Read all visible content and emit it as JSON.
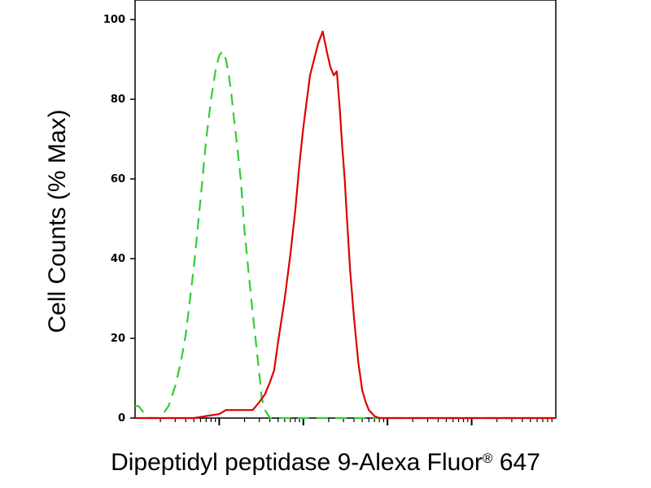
{
  "chart_data": {
    "type": "line",
    "xlabel": "Dipeptidyl peptidase 9-Alexa Fluor",
    "xlabel_superscript": "®",
    "xlabel_suffix": "647",
    "ylabel": "Cell Counts (% Max)",
    "x_scale": "log",
    "xlim": [
      1,
      100000
    ],
    "ylim": [
      0,
      100
    ],
    "y_ticks": [
      "0",
      "20",
      "40",
      "60",
      "80",
      "100"
    ],
    "grid": false,
    "legend": "none",
    "series": [
      {
        "color": "#33cc33",
        "dash": "dashed",
        "x": [
          1,
          1.1,
          1.2,
          1.3,
          1.5,
          1.7,
          2,
          2.5,
          3,
          3.5,
          4,
          5,
          6,
          7,
          8,
          9,
          10,
          11,
          12,
          13,
          14,
          15,
          16,
          18,
          20,
          22,
          24,
          26,
          28,
          30,
          32,
          35,
          40,
          50,
          70,
          100,
          1000,
          10000,
          100000
        ],
        "y": [
          3,
          3,
          2,
          1,
          0,
          0,
          0,
          3,
          8,
          14,
          21,
          38,
          55,
          70,
          80,
          87,
          91,
          92,
          90,
          86,
          81,
          75,
          70,
          60,
          47,
          38,
          30,
          23,
          17,
          11,
          5,
          2,
          0,
          0,
          0,
          0,
          0,
          0,
          0
        ]
      },
      {
        "color": "#dd0000",
        "dash": "solid",
        "x": [
          1,
          5,
          7,
          10,
          12,
          14,
          16,
          20,
          25,
          30,
          35,
          40,
          45,
          50,
          60,
          70,
          80,
          90,
          100,
          120,
          150,
          170,
          190,
          210,
          230,
          250,
          270,
          290,
          310,
          330,
          360,
          400,
          450,
          500,
          550,
          600,
          700,
          800,
          1000,
          1500,
          2000,
          100000
        ],
        "y": [
          0,
          0,
          0.5,
          1,
          2,
          2,
          2,
          2,
          2,
          4,
          6,
          9,
          12,
          19,
          30,
          41,
          52,
          64,
          73,
          86,
          94,
          97,
          92,
          88,
          86,
          87,
          78,
          68,
          60,
          50,
          37,
          25,
          14,
          7,
          4,
          2,
          0.5,
          0,
          0,
          0,
          0,
          0
        ]
      }
    ]
  }
}
